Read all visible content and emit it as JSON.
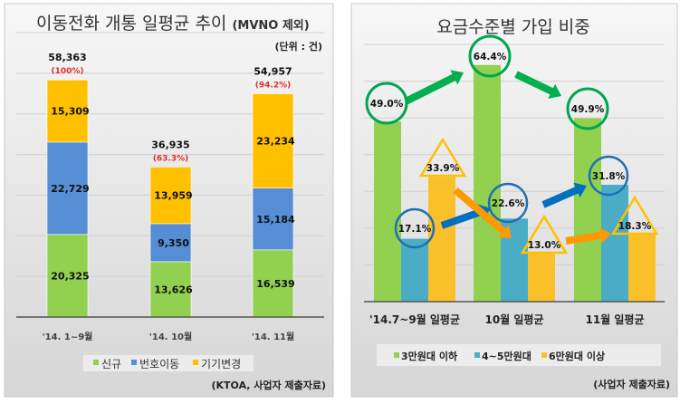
{
  "chart_data": [
    {
      "type": "bar",
      "stacked": true,
      "title": "이동전화 개통 일평균 추이",
      "title_suffix": "(MVNO 제외)",
      "unit_label": "(단위 : 건)",
      "categories": [
        "'14. 1~9월",
        "'14. 10월",
        "'14. 11월"
      ],
      "series": [
        {
          "name": "신규",
          "color": "#92d050",
          "values": [
            20325,
            13626,
            16539
          ],
          "labels": [
            "20,325",
            "13,626",
            "16,539"
          ]
        },
        {
          "name": "번호이동",
          "color": "#558ed5",
          "values": [
            22729,
            9350,
            15184
          ],
          "labels": [
            "22,729",
            "9,350",
            "15,184"
          ]
        },
        {
          "name": "기기변경",
          "color": "#ffc000",
          "values": [
            15309,
            13959,
            23234
          ],
          "labels": [
            "15,309",
            "13,959",
            "23,234"
          ]
        }
      ],
      "totals": [
        "58,363",
        "36,935",
        "54,957"
      ],
      "total_pct": [
        "(100%)",
        "(63.3%)",
        "(94.2%)"
      ],
      "ylim": [
        0,
        70000
      ],
      "grid": true,
      "legend": "bottom",
      "source": "(KTOA, 사업자 제출자료)"
    },
    {
      "type": "bar",
      "title": "요금수준별 가입 비중",
      "categories": [
        "'14.7~9월 일평균",
        "10월 일평균",
        "11월 일평균"
      ],
      "series": [
        {
          "name": "3만원대 이하",
          "color": "#92d050",
          "values": [
            49.0,
            64.4,
            49.9
          ],
          "labels": [
            "49.0%",
            "64.4%",
            "49.9%"
          ]
        },
        {
          "name": "4~5만원대",
          "color": "#4bacc6",
          "values": [
            17.1,
            22.6,
            31.8
          ],
          "labels": [
            "17.1%",
            "22.6%",
            "31.8%"
          ]
        },
        {
          "name": "6만원대 이상",
          "color": "#f9c02a",
          "values": [
            33.9,
            13.0,
            18.3
          ],
          "labels": [
            "33.9%",
            "13.0%",
            "18.3%"
          ]
        }
      ],
      "ylim": [
        0,
        70
      ],
      "grid": true,
      "legend": "bottom",
      "source": "(사업자 제출자료)"
    }
  ]
}
